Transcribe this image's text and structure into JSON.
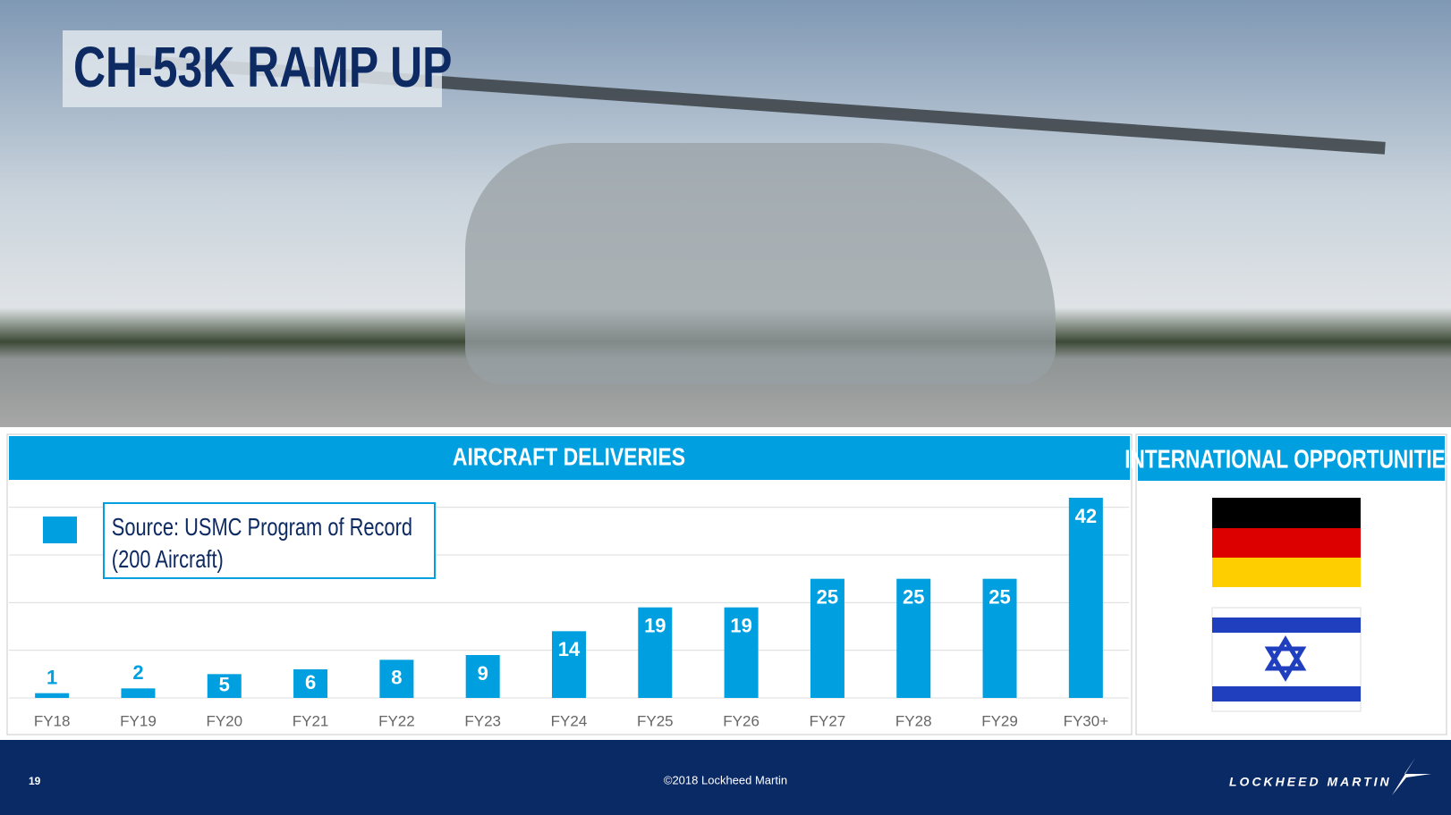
{
  "title": "CH-53K RAMP UP",
  "chart_data": {
    "type": "bar",
    "title": "AIRCRAFT DELIVERIES",
    "categories": [
      "FY18",
      "FY19",
      "FY20",
      "FY21",
      "FY22",
      "FY23",
      "FY24",
      "FY25",
      "FY26",
      "FY27",
      "FY28",
      "FY29",
      "FY30+"
    ],
    "series": [
      {
        "name": "Source: USMC Program of Record (200 Aircraft)",
        "color": "#00a0e0",
        "values": [
          1,
          2,
          5,
          6,
          8,
          9,
          14,
          19,
          19,
          25,
          25,
          25,
          42
        ]
      }
    ],
    "ylim": [
      0,
      45
    ],
    "yticks": [
      0,
      10,
      20,
      30,
      40
    ],
    "grid": true
  },
  "international": {
    "title": "INTERNATIONAL OPPORTUNITIES"
  },
  "footer": {
    "page": "19",
    "copyright": "©2018 Lockheed Martin",
    "logo": "LOCKHEED MARTIN"
  }
}
